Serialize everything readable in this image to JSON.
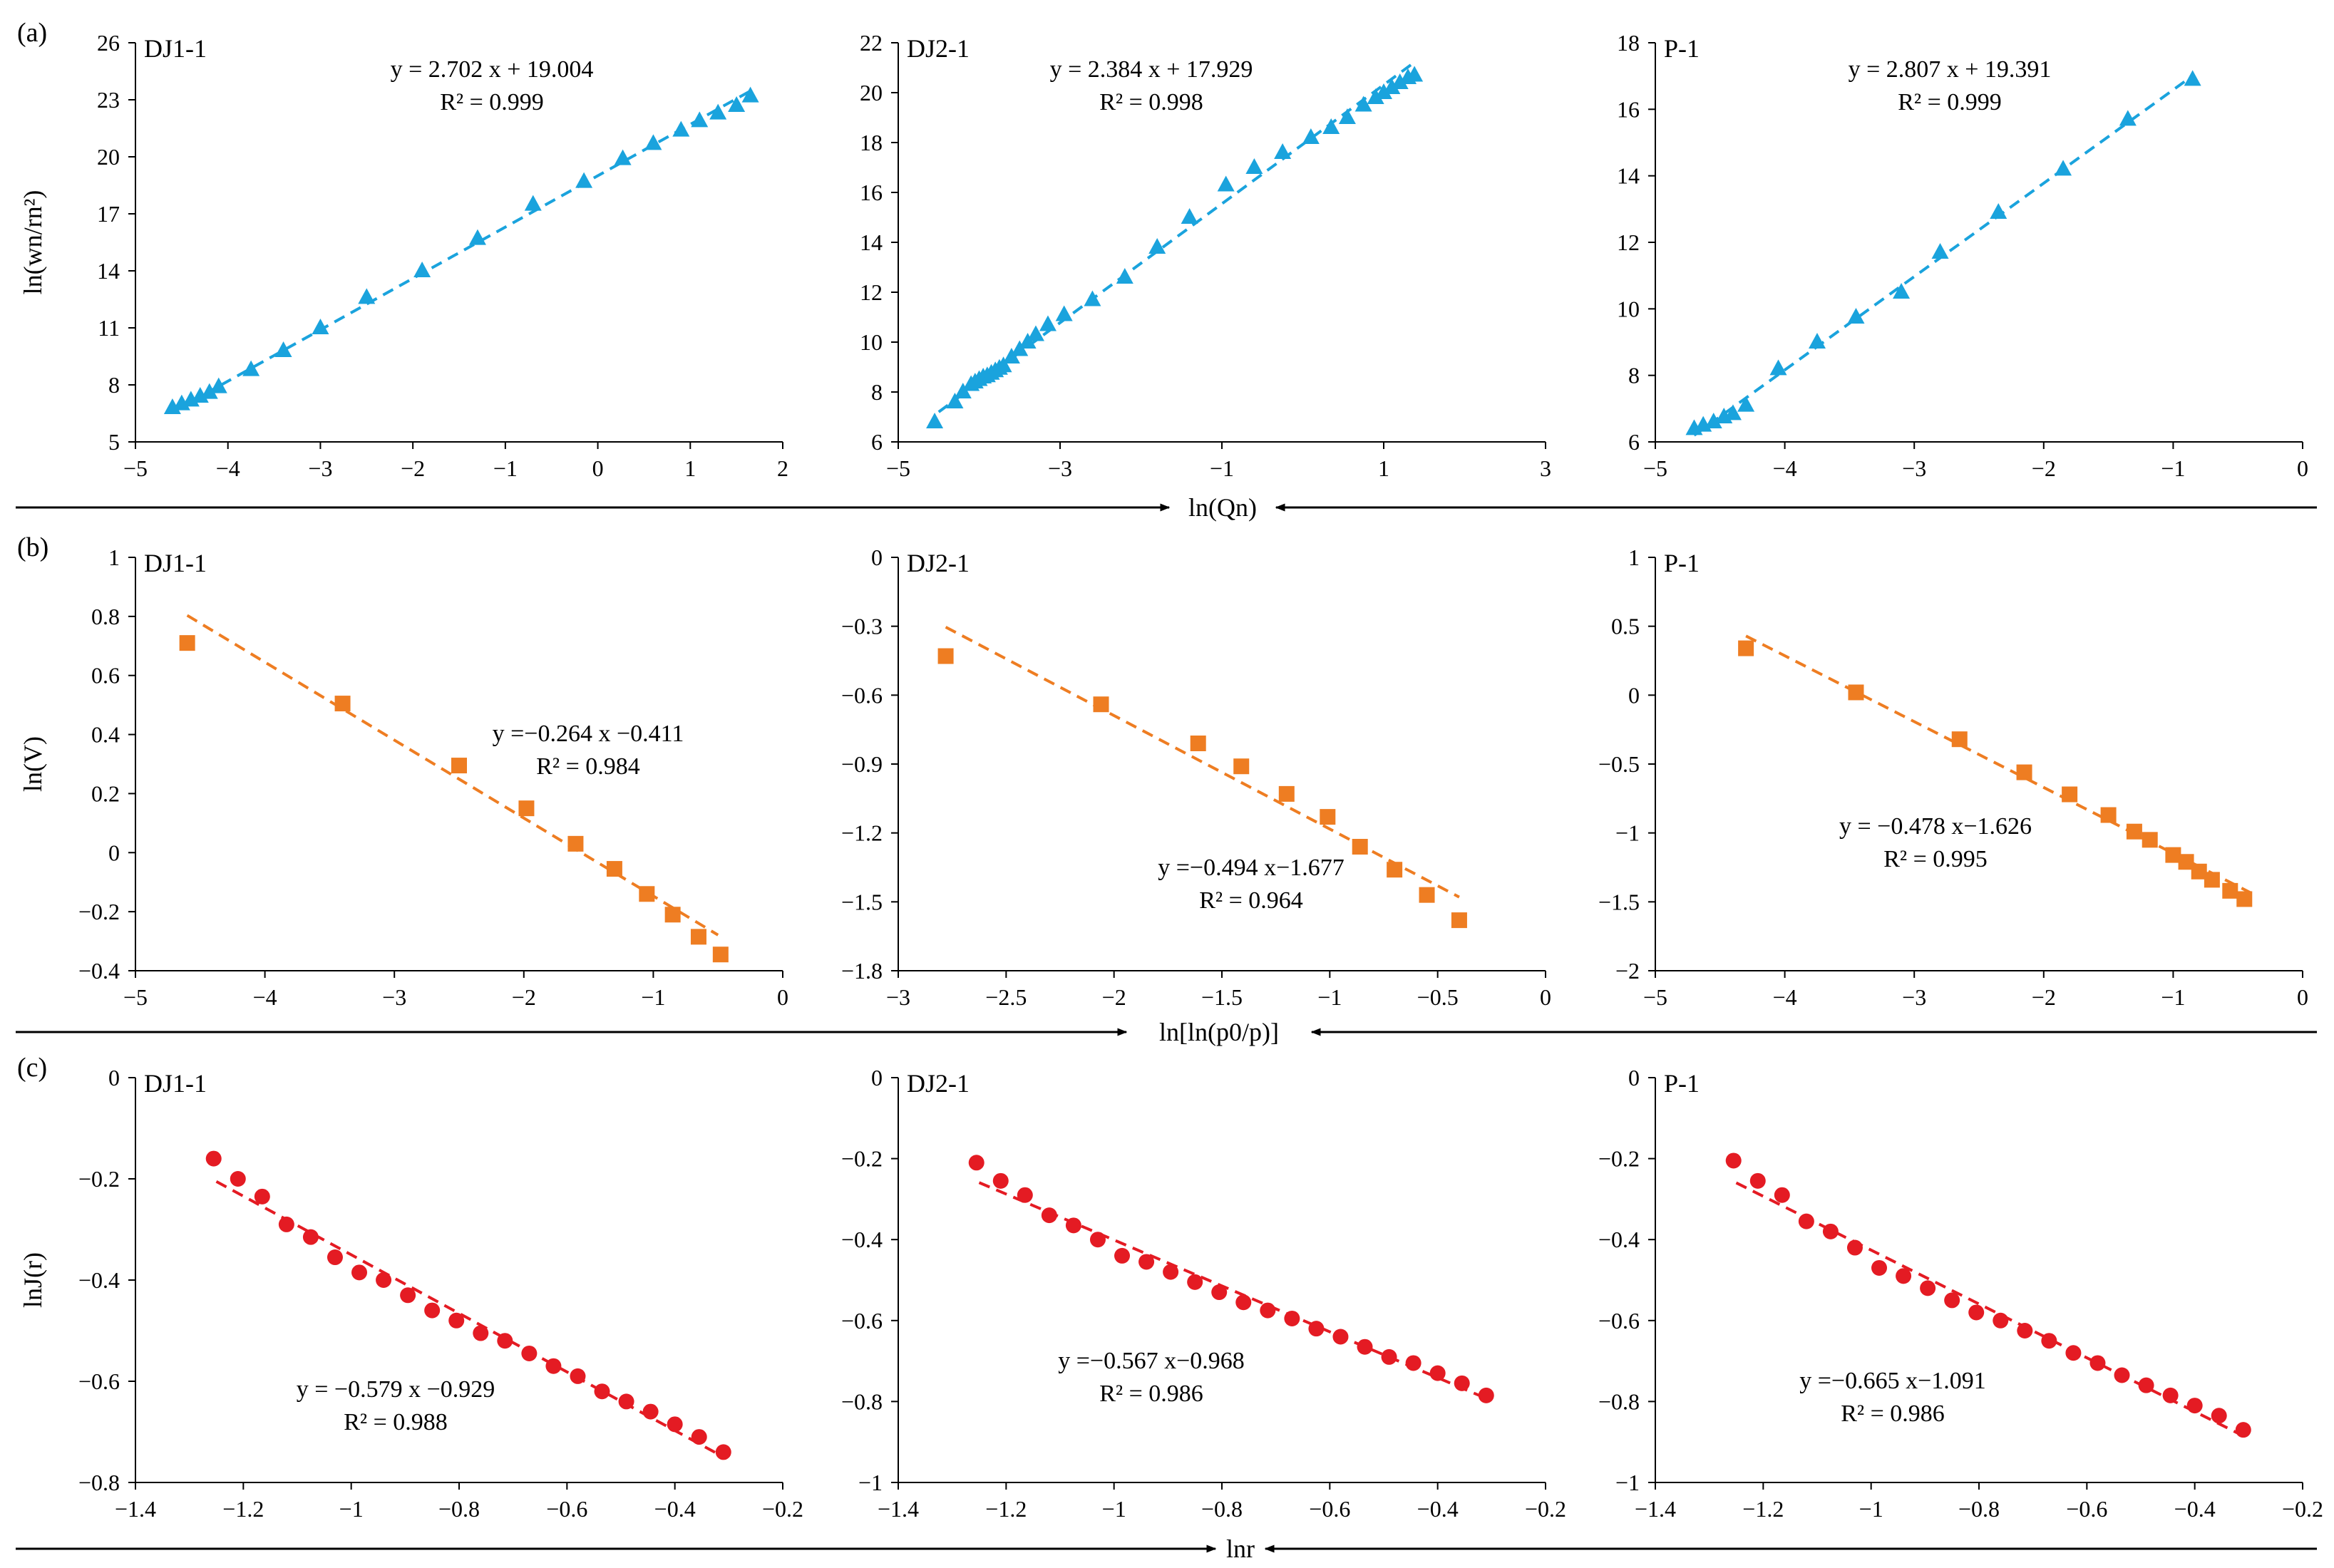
{
  "chart_data": [
    {
      "row": "a",
      "panel_label": "(a)",
      "site": "DJ1-1",
      "type": "scatter",
      "color": "#1aa3dd",
      "marker": "triangle",
      "xlabel": "ln(Qn)",
      "ylabel": "ln(wn/rn²)",
      "xlim": [
        -5,
        2
      ],
      "ylim": [
        5,
        26
      ],
      "xticks": [
        -5,
        -4,
        -3,
        -2,
        -1,
        0,
        1,
        2
      ],
      "yticks": [
        5,
        8,
        11,
        14,
        17,
        20,
        23,
        26
      ],
      "xtick_labels": [
        "−5",
        "−4",
        "−3",
        "−2",
        "−1",
        "0",
        "1",
        "2"
      ],
      "ytick_labels": [
        "5",
        "8",
        "11",
        "14",
        "17",
        "20",
        "23",
        "26"
      ],
      "equation": "y = 2.702 x + 19.004",
      "r2": "R² = 0.999",
      "fit": {
        "slope": 2.702,
        "intercept": 19.004,
        "x_range": [
          -4.6,
          1.65
        ]
      },
      "points": [
        [
          -4.6,
          6.8
        ],
        [
          -4.5,
          7.0
        ],
        [
          -4.4,
          7.2
        ],
        [
          -4.3,
          7.4
        ],
        [
          -4.2,
          7.6
        ],
        [
          -4.1,
          7.9
        ],
        [
          -3.75,
          8.8
        ],
        [
          -3.4,
          9.8
        ],
        [
          -3.0,
          11.0
        ],
        [
          -2.5,
          12.6
        ],
        [
          -1.9,
          14.0
        ],
        [
          -1.3,
          15.7
        ],
        [
          -0.7,
          17.5
        ],
        [
          -0.15,
          18.7
        ],
        [
          0.27,
          19.9
        ],
        [
          0.6,
          20.7
        ],
        [
          0.9,
          21.4
        ],
        [
          1.1,
          21.9
        ],
        [
          1.3,
          22.3
        ],
        [
          1.5,
          22.7
        ],
        [
          1.65,
          23.2
        ]
      ]
    },
    {
      "row": "a",
      "site": "DJ2-1",
      "type": "scatter",
      "color": "#1aa3dd",
      "marker": "triangle",
      "xlim": [
        -5,
        3
      ],
      "ylim": [
        6,
        22
      ],
      "xticks": [
        -5,
        -3,
        -1,
        1,
        3
      ],
      "yticks": [
        6,
        8,
        10,
        12,
        14,
        16,
        18,
        20,
        22
      ],
      "xtick_labels": [
        "−5",
        "−3",
        "−1",
        "1",
        "3"
      ],
      "ytick_labels": [
        "6",
        "8",
        "10",
        "12",
        "14",
        "16",
        "18",
        "20",
        "22"
      ],
      "equation": "y = 2.384 x + 17.929",
      "r2": "R² = 0.998",
      "fit": {
        "slope": 2.384,
        "intercept": 17.929,
        "x_range": [
          -4.5,
          1.4
        ]
      },
      "points": [
        [
          -4.55,
          6.8
        ],
        [
          -4.3,
          7.6
        ],
        [
          -4.2,
          8.0
        ],
        [
          -4.1,
          8.3
        ],
        [
          -4.05,
          8.4
        ],
        [
          -4.0,
          8.5
        ],
        [
          -3.95,
          8.6
        ],
        [
          -3.9,
          8.65
        ],
        [
          -3.85,
          8.75
        ],
        [
          -3.8,
          8.85
        ],
        [
          -3.75,
          8.95
        ],
        [
          -3.7,
          9.05
        ],
        [
          -3.6,
          9.4
        ],
        [
          -3.5,
          9.7
        ],
        [
          -3.4,
          10.0
        ],
        [
          -3.3,
          10.3
        ],
        [
          -3.15,
          10.7
        ],
        [
          -2.95,
          11.1
        ],
        [
          -2.6,
          11.7
        ],
        [
          -2.2,
          12.6
        ],
        [
          -1.8,
          13.8
        ],
        [
          -1.4,
          15.0
        ],
        [
          -0.95,
          16.3
        ],
        [
          -0.6,
          17.0
        ],
        [
          -0.25,
          17.6
        ],
        [
          0.1,
          18.2
        ],
        [
          0.35,
          18.6
        ],
        [
          0.55,
          19.0
        ],
        [
          0.75,
          19.5
        ],
        [
          0.9,
          19.8
        ],
        [
          1.0,
          20.0
        ],
        [
          1.1,
          20.2
        ],
        [
          1.2,
          20.4
        ],
        [
          1.3,
          20.6
        ],
        [
          1.38,
          20.7
        ]
      ]
    },
    {
      "row": "a",
      "site": "P-1",
      "type": "scatter",
      "color": "#1aa3dd",
      "marker": "triangle",
      "xlim": [
        -5,
        0
      ],
      "ylim": [
        6,
        18
      ],
      "xticks": [
        -5,
        -4,
        -3,
        -2,
        -1,
        0
      ],
      "yticks": [
        6,
        8,
        10,
        12,
        14,
        16,
        18
      ],
      "xtick_labels": [
        "−5",
        "−4",
        "−3",
        "−2",
        "−1",
        "0"
      ],
      "ytick_labels": [
        "6",
        "8",
        "10",
        "12",
        "14",
        "16",
        "18"
      ],
      "equation": "y = 2.807 x + 19.391",
      "r2": "R² = 0.999",
      "fit": {
        "slope": 2.807,
        "intercept": 19.391,
        "x_range": [
          -4.7,
          -0.85
        ]
      },
      "points": [
        [
          -4.7,
          6.4
        ],
        [
          -4.63,
          6.5
        ],
        [
          -4.55,
          6.6
        ],
        [
          -4.47,
          6.75
        ],
        [
          -4.4,
          6.85
        ],
        [
          -4.3,
          7.1
        ],
        [
          -4.05,
          8.2
        ],
        [
          -3.75,
          9.0
        ],
        [
          -3.45,
          9.75
        ],
        [
          -3.1,
          10.5
        ],
        [
          -2.8,
          11.7
        ],
        [
          -2.35,
          12.9
        ],
        [
          -1.85,
          14.2
        ],
        [
          -1.35,
          15.7
        ],
        [
          -0.85,
          16.9
        ]
      ]
    },
    {
      "row": "b",
      "panel_label": "(b)",
      "site": "DJ1-1",
      "type": "scatter",
      "color": "#ee7d22",
      "marker": "square",
      "xlabel": "ln[ln(p0/p)]",
      "ylabel": "ln(V)",
      "xlim": [
        -5,
        0
      ],
      "ylim": [
        -0.4,
        1
      ],
      "xticks": [
        -5,
        -4,
        -3,
        -2,
        -1,
        0
      ],
      "yticks": [
        -0.4,
        -0.2,
        0,
        0.2,
        0.4,
        0.6,
        0.8,
        1
      ],
      "xtick_labels": [
        "−5",
        "−4",
        "−3",
        "−2",
        "−1",
        "0"
      ],
      "ytick_labels": [
        "−0.4",
        "−0.2",
        "0",
        "0.2",
        "0.4",
        "0.6",
        "0.8",
        "1"
      ],
      "equation": "y =−0.264 x −0.411",
      "r2": "R² = 0.984",
      "fit": {
        "slope": -0.264,
        "intercept": -0.411,
        "x_range": [
          -4.6,
          -0.5
        ]
      },
      "points": [
        [
          -4.6,
          0.71
        ],
        [
          -3.4,
          0.505
        ],
        [
          -2.5,
          0.295
        ],
        [
          -1.98,
          0.15
        ],
        [
          -1.6,
          0.03
        ],
        [
          -1.3,
          -0.055
        ],
        [
          -1.05,
          -0.14
        ],
        [
          -0.85,
          -0.21
        ],
        [
          -0.65,
          -0.285
        ],
        [
          -0.48,
          -0.345
        ]
      ]
    },
    {
      "row": "b",
      "site": "DJ2-1",
      "type": "scatter",
      "color": "#ee7d22",
      "marker": "square",
      "xlim": [
        -3,
        0
      ],
      "ylim": [
        -1.8,
        0
      ],
      "xticks": [
        -3,
        -2.5,
        -2,
        -1.5,
        -1,
        -0.5,
        0
      ],
      "yticks": [
        -1.8,
        -1.5,
        -1.2,
        -0.9,
        -0.6,
        -0.3,
        0
      ],
      "xtick_labels": [
        "−3",
        "−2.5",
        "−2",
        "−1.5",
        "−1",
        "−0.5",
        "0"
      ],
      "ytick_labels": [
        "−1.8",
        "−1.5",
        "−1.2",
        "−0.9",
        "−0.6",
        "−0.3",
        "0"
      ],
      "equation": "y =−0.494 x−1.677",
      "r2": "R² = 0.964",
      "fit": {
        "slope": -0.494,
        "intercept": -1.677,
        "x_range": [
          -2.78,
          -0.4
        ]
      },
      "points": [
        [
          -2.78,
          -0.43
        ],
        [
          -2.06,
          -0.64
        ],
        [
          -1.61,
          -0.81
        ],
        [
          -1.41,
          -0.91
        ],
        [
          -1.2,
          -1.03
        ],
        [
          -1.01,
          -1.13
        ],
        [
          -0.86,
          -1.26
        ],
        [
          -0.7,
          -1.36
        ],
        [
          -0.55,
          -1.47
        ],
        [
          -0.4,
          -1.58
        ]
      ]
    },
    {
      "row": "b",
      "site": "P-1",
      "type": "scatter",
      "color": "#ee7d22",
      "marker": "square",
      "xlim": [
        -5,
        0
      ],
      "ylim": [
        -2,
        1
      ],
      "xticks": [
        -5,
        -4,
        -3,
        -2,
        -1,
        0
      ],
      "yticks": [
        -2,
        -1.5,
        -1,
        -0.5,
        0,
        0.5,
        1
      ],
      "xtick_labels": [
        "−5",
        "−4",
        "−3",
        "−2",
        "−1",
        "0"
      ],
      "ytick_labels": [
        "−2",
        "−1.5",
        "−1",
        "−0.5",
        "0",
        "0.5",
        "1"
      ],
      "equation": "y =  −0.478 x−1.626",
      "r2": "R² = 0.995",
      "fit": {
        "slope": -0.478,
        "intercept": -1.626,
        "x_range": [
          -4.3,
          -0.4
        ]
      },
      "points": [
        [
          -4.3,
          0.34
        ],
        [
          -3.45,
          0.02
        ],
        [
          -2.65,
          -0.32
        ],
        [
          -2.15,
          -0.56
        ],
        [
          -1.8,
          -0.72
        ],
        [
          -1.5,
          -0.87
        ],
        [
          -1.3,
          -0.99
        ],
        [
          -1.18,
          -1.05
        ],
        [
          -1.0,
          -1.16
        ],
        [
          -0.9,
          -1.21
        ],
        [
          -0.8,
          -1.28
        ],
        [
          -0.7,
          -1.34
        ],
        [
          -0.56,
          -1.42
        ],
        [
          -0.45,
          -1.48
        ]
      ]
    },
    {
      "row": "c",
      "panel_label": "(c)",
      "site": "DJ1-1",
      "type": "scatter",
      "color": "#e41b23",
      "marker": "circle",
      "xlabel": "lnr",
      "ylabel": "lnJ(r)",
      "xlim": [
        -1.4,
        -0.2
      ],
      "ylim": [
        -0.8,
        0
      ],
      "xticks": [
        -1.4,
        -1.2,
        -1,
        -0.8,
        -0.6,
        -0.4,
        -0.2
      ],
      "yticks": [
        -0.8,
        -0.6,
        -0.4,
        -0.2,
        0
      ],
      "xtick_labels": [
        "−1.4",
        "−1.2",
        "−1",
        "−0.8",
        "−0.6",
        "−0.4",
        "−0.2"
      ],
      "ytick_labels": [
        "−0.8",
        "−0.6",
        "−0.4",
        "−0.2",
        "0"
      ],
      "equation": "y = −0.579 x −0.929",
      "r2": "R² = 0.988",
      "fit": {
        "slope": -0.579,
        "intercept": -0.929,
        "x_range": [
          -1.25,
          -0.31
        ]
      },
      "points": [
        [
          -1.255,
          -0.16
        ],
        [
          -1.21,
          -0.2
        ],
        [
          -1.165,
          -0.235
        ],
        [
          -1.12,
          -0.29
        ],
        [
          -1.075,
          -0.315
        ],
        [
          -1.03,
          -0.355
        ],
        [
          -0.985,
          -0.385
        ],
        [
          -0.94,
          -0.4
        ],
        [
          -0.895,
          -0.43
        ],
        [
          -0.85,
          -0.46
        ],
        [
          -0.805,
          -0.48
        ],
        [
          -0.76,
          -0.505
        ],
        [
          -0.715,
          -0.52
        ],
        [
          -0.67,
          -0.545
        ],
        [
          -0.625,
          -0.57
        ],
        [
          -0.58,
          -0.59
        ],
        [
          -0.535,
          -0.62
        ],
        [
          -0.49,
          -0.64
        ],
        [
          -0.445,
          -0.66
        ],
        [
          -0.4,
          -0.685
        ],
        [
          -0.355,
          -0.71
        ],
        [
          -0.31,
          -0.74
        ]
      ]
    },
    {
      "row": "c",
      "site": "DJ2-1",
      "type": "scatter",
      "color": "#e41b23",
      "marker": "circle",
      "xlim": [
        -1.4,
        -0.2
      ],
      "ylim": [
        -1,
        0
      ],
      "xticks": [
        -1.4,
        -1.2,
        -1,
        -0.8,
        -0.6,
        -0.4,
        -0.2
      ],
      "yticks": [
        -1,
        -0.8,
        -0.6,
        -0.4,
        -0.2,
        0
      ],
      "xtick_labels": [
        "−1.4",
        "−1.2",
        "−1",
        "−0.8",
        "−0.6",
        "−0.4",
        "−0.2"
      ],
      "ytick_labels": [
        "−1",
        "−0.8",
        "−0.6",
        "−0.4",
        "−0.2",
        "0"
      ],
      "equation": "y =−0.567 x−0.968",
      "r2": "R² = 0.986",
      "fit": {
        "slope": -0.567,
        "intercept": -0.968,
        "x_range": [
          -1.25,
          -0.31
        ]
      },
      "points": [
        [
          -1.255,
          -0.21
        ],
        [
          -1.21,
          -0.255
        ],
        [
          -1.165,
          -0.29
        ],
        [
          -1.12,
          -0.34
        ],
        [
          -1.075,
          -0.365
        ],
        [
          -1.03,
          -0.4
        ],
        [
          -0.985,
          -0.44
        ],
        [
          -0.94,
          -0.455
        ],
        [
          -0.895,
          -0.48
        ],
        [
          -0.85,
          -0.505
        ],
        [
          -0.805,
          -0.53
        ],
        [
          -0.76,
          -0.555
        ],
        [
          -0.715,
          -0.575
        ],
        [
          -0.67,
          -0.595
        ],
        [
          -0.625,
          -0.62
        ],
        [
          -0.58,
          -0.64
        ],
        [
          -0.535,
          -0.665
        ],
        [
          -0.49,
          -0.69
        ],
        [
          -0.445,
          -0.705
        ],
        [
          -0.4,
          -0.73
        ],
        [
          -0.355,
          -0.755
        ],
        [
          -0.31,
          -0.785
        ]
      ]
    },
    {
      "row": "c",
      "site": "P-1",
      "type": "scatter",
      "color": "#e41b23",
      "marker": "circle",
      "xlim": [
        -1.4,
        -0.2
      ],
      "ylim": [
        -1,
        0
      ],
      "xticks": [
        -1.4,
        -1.2,
        -1,
        -0.8,
        -0.6,
        -0.4,
        -0.2
      ],
      "yticks": [
        -1,
        -0.8,
        -0.6,
        -0.4,
        -0.2,
        0
      ],
      "xtick_labels": [
        "−1.4",
        "−1.2",
        "−1",
        "−0.8",
        "−0.6",
        "−0.4",
        "−0.2"
      ],
      "ytick_labels": [
        "−1",
        "−0.8",
        "−0.6",
        "−0.4",
        "−0.2",
        "0"
      ],
      "equation": "y =−0.665 x−1.091",
      "r2": "R² = 0.986",
      "fit": {
        "slope": -0.665,
        "intercept": -1.091,
        "x_range": [
          -1.25,
          -0.31
        ]
      },
      "points": [
        [
          -1.255,
          -0.205
        ],
        [
          -1.21,
          -0.255
        ],
        [
          -1.165,
          -0.29
        ],
        [
          -1.12,
          -0.355
        ],
        [
          -1.075,
          -0.38
        ],
        [
          -1.03,
          -0.42
        ],
        [
          -0.985,
          -0.47
        ],
        [
          -0.94,
          -0.49
        ],
        [
          -0.895,
          -0.52
        ],
        [
          -0.85,
          -0.55
        ],
        [
          -0.805,
          -0.58
        ],
        [
          -0.76,
          -0.6
        ],
        [
          -0.715,
          -0.625
        ],
        [
          -0.67,
          -0.65
        ],
        [
          -0.625,
          -0.68
        ],
        [
          -0.58,
          -0.705
        ],
        [
          -0.535,
          -0.735
        ],
        [
          -0.49,
          -0.76
        ],
        [
          -0.445,
          -0.785
        ],
        [
          -0.4,
          -0.81
        ],
        [
          -0.355,
          -0.835
        ],
        [
          -0.31,
          -0.87
        ]
      ]
    }
  ]
}
